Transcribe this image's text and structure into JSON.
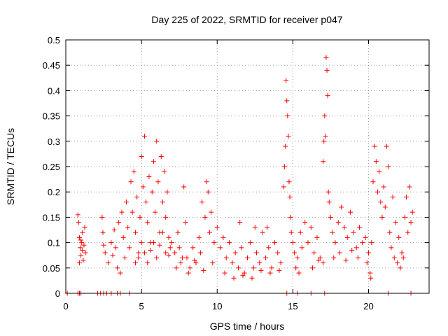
{
  "chart_data": {
    "type": "scatter",
    "title": "Day 225 of 2022, SRMTID for receiver p047",
    "xlabel": "GPS time / hours",
    "ylabel": "SRMTID / TECUs",
    "xlim": [
      0,
      24
    ],
    "ylim": [
      0,
      0.5
    ],
    "xticks": [
      0,
      5,
      10,
      15,
      20
    ],
    "xtick_labels": [
      "0",
      "5",
      "10",
      "15",
      "20"
    ],
    "yticks": [
      0,
      0.05,
      0.1,
      0.15,
      0.2,
      0.25,
      0.3,
      0.35,
      0.4,
      0.45,
      0.5
    ],
    "ytick_labels": [
      "0",
      "0.05",
      "0.1",
      "0.15",
      "0.2",
      "0.25",
      "0.3",
      "0.35",
      "0.4",
      "0.45",
      "0.5"
    ],
    "grid": true,
    "marker": "+",
    "color": "#ff0000",
    "series": [
      {
        "name": "p047",
        "points": [
          [
            0.1,
            0
          ],
          [
            0.8,
            0
          ],
          [
            0.9,
            0
          ],
          [
            1.0,
            0
          ],
          [
            2.1,
            0
          ],
          [
            2.3,
            0
          ],
          [
            2.5,
            0
          ],
          [
            2.7,
            0
          ],
          [
            3.0,
            0
          ],
          [
            3.4,
            0
          ],
          [
            3.6,
            0
          ],
          [
            4.2,
            0
          ],
          [
            14.6,
            0
          ],
          [
            15.3,
            0
          ],
          [
            16.2,
            0
          ],
          [
            17.1,
            0
          ],
          [
            21.3,
            0
          ],
          [
            22.8,
            0
          ],
          [
            0.8,
            0.155
          ],
          [
            0.85,
            0.14
          ],
          [
            0.9,
            0.11
          ],
          [
            0.95,
            0.09
          ],
          [
            1.0,
            0.075
          ],
          [
            1.05,
            0.1
          ],
          [
            1.1,
            0.12
          ],
          [
            1.15,
            0.065
          ],
          [
            1.2,
            0.095
          ],
          [
            1.25,
            0.13
          ],
          [
            1.3,
            0.08
          ],
          [
            0.9,
            0.06
          ],
          [
            1.0,
            0.105
          ],
          [
            1.1,
            0.085
          ],
          [
            2.4,
            0.15
          ],
          [
            2.45,
            0.12
          ],
          [
            2.5,
            0.095
          ],
          [
            2.6,
            0.08
          ],
          [
            2.8,
            0.06
          ],
          [
            3.0,
            0.1
          ],
          [
            3.1,
            0.075
          ],
          [
            3.2,
            0.125
          ],
          [
            3.3,
            0.09
          ],
          [
            3.4,
            0.05
          ],
          [
            3.5,
            0.14
          ],
          [
            3.6,
            0.04
          ],
          [
            3.7,
            0.16
          ],
          [
            3.8,
            0.11
          ],
          [
            3.9,
            0.07
          ],
          [
            4.0,
            0.18
          ],
          [
            4.1,
            0.13
          ],
          [
            4.2,
            0.09
          ],
          [
            4.3,
            0.22
          ],
          [
            4.4,
            0.16
          ],
          [
            4.5,
            0.24
          ],
          [
            4.6,
            0.12
          ],
          [
            4.7,
            0.19
          ],
          [
            4.8,
            0.08
          ],
          [
            4.9,
            0.15
          ],
          [
            5.0,
            0.27
          ],
          [
            5.1,
            0.21
          ],
          [
            5.2,
            0.31
          ],
          [
            5.3,
            0.18
          ],
          [
            5.4,
            0.14
          ],
          [
            5.5,
            0.23
          ],
          [
            5.6,
            0.1
          ],
          [
            5.7,
            0.2
          ],
          [
            5.8,
            0.26
          ],
          [
            5.9,
            0.16
          ],
          [
            6.0,
            0.3
          ],
          [
            6.1,
            0.22
          ],
          [
            6.2,
            0.12
          ],
          [
            6.3,
            0.27
          ],
          [
            6.4,
            0.18
          ],
          [
            6.5,
            0.24
          ],
          [
            6.6,
            0.15
          ],
          [
            6.7,
            0.2
          ],
          [
            6.8,
            0.11
          ],
          [
            6.9,
            0.09
          ],
          [
            4.6,
            0.06
          ],
          [
            4.8,
            0.07
          ],
          [
            5.0,
            0.1
          ],
          [
            5.2,
            0.08
          ],
          [
            5.4,
            0.06
          ],
          [
            5.6,
            0.085
          ],
          [
            5.8,
            0.1
          ],
          [
            6.0,
            0.07
          ],
          [
            6.2,
            0.095
          ],
          [
            6.4,
            0.12
          ],
          [
            6.6,
            0.08
          ],
          [
            6.8,
            0.075
          ],
          [
            7.0,
            0.1
          ],
          [
            7.2,
            0.08
          ],
          [
            7.4,
            0.12
          ],
          [
            7.5,
            0.09
          ],
          [
            7.6,
            0.06
          ],
          [
            7.8,
            0.21
          ],
          [
            7.9,
            0.14
          ],
          [
            8.0,
            0.07
          ],
          [
            8.2,
            0.05
          ],
          [
            8.4,
            0.09
          ],
          [
            8.6,
            0.06
          ],
          [
            8.8,
            0.11
          ],
          [
            9.0,
            0.18
          ],
          [
            9.2,
            0.15
          ],
          [
            9.3,
            0.22
          ],
          [
            9.4,
            0.2
          ],
          [
            9.5,
            0.12
          ],
          [
            9.6,
            0.16
          ],
          [
            9.8,
            0.1
          ],
          [
            7.3,
            0.05
          ],
          [
            7.7,
            0.07
          ],
          [
            8.1,
            0.04
          ],
          [
            8.5,
            0.065
          ],
          [
            8.9,
            0.08
          ],
          [
            9.1,
            0.045
          ],
          [
            9.7,
            0.06
          ],
          [
            10.0,
            0.13
          ],
          [
            10.2,
            0.09
          ],
          [
            10.4,
            0.11
          ],
          [
            10.6,
            0.07
          ],
          [
            10.8,
            0.1
          ],
          [
            11.0,
            0.06
          ],
          [
            11.2,
            0.08
          ],
          [
            11.4,
            0.05
          ],
          [
            11.6,
            0.09
          ],
          [
            11.8,
            0.04
          ],
          [
            12.0,
            0.07
          ],
          [
            12.2,
            0.1
          ],
          [
            12.4,
            0.05
          ],
          [
            12.6,
            0.08
          ],
          [
            12.8,
            0.06
          ],
          [
            13.0,
            0.12
          ],
          [
            13.2,
            0.07
          ],
          [
            13.4,
            0.09
          ],
          [
            13.6,
            0.05
          ],
          [
            13.8,
            0.1
          ],
          [
            14.0,
            0.08
          ],
          [
            14.2,
            0.06
          ],
          [
            10.5,
            0.04
          ],
          [
            11.1,
            0.03
          ],
          [
            11.7,
            0.035
          ],
          [
            12.3,
            0.03
          ],
          [
            12.9,
            0.045
          ],
          [
            13.5,
            0.04
          ],
          [
            14.1,
            0.045
          ],
          [
            11.5,
            0.14
          ],
          [
            12.5,
            0.13
          ],
          [
            13.3,
            0.13
          ],
          [
            14.4,
            0.21
          ],
          [
            14.45,
            0.25
          ],
          [
            14.5,
            0.29
          ],
          [
            14.55,
            0.42
          ],
          [
            14.6,
            0.38
          ],
          [
            14.65,
            0.35
          ],
          [
            14.7,
            0.31
          ],
          [
            14.75,
            0.22
          ],
          [
            14.8,
            0.19
          ],
          [
            14.85,
            0.15
          ],
          [
            14.9,
            0.12
          ],
          [
            15.0,
            0.1
          ],
          [
            15.1,
            0.08
          ],
          [
            15.2,
            0.05
          ],
          [
            15.3,
            0.07
          ],
          [
            15.4,
            0.04
          ],
          [
            15.5,
            0.12
          ],
          [
            15.6,
            0.09
          ],
          [
            15.8,
            0.14
          ],
          [
            16.0,
            0.1
          ],
          [
            16.2,
            0.13
          ],
          [
            16.4,
            0.08
          ],
          [
            16.6,
            0.11
          ],
          [
            16.8,
            0.07
          ],
          [
            17.0,
            0.06
          ],
          [
            16.3,
            0.05
          ],
          [
            16.7,
            0.065
          ],
          [
            17.0,
            0.26
          ],
          [
            17.05,
            0.3
          ],
          [
            17.1,
            0.35
          ],
          [
            17.15,
            0.31
          ],
          [
            17.2,
            0.465
          ],
          [
            17.25,
            0.44
          ],
          [
            17.3,
            0.39
          ],
          [
            17.35,
            0.2
          ],
          [
            17.4,
            0.18
          ],
          [
            17.5,
            0.15
          ],
          [
            17.6,
            0.12
          ],
          [
            17.8,
            0.1
          ],
          [
            18.0,
            0.14
          ],
          [
            18.2,
            0.17
          ],
          [
            18.4,
            0.13
          ],
          [
            18.6,
            0.11
          ],
          [
            18.8,
            0.16
          ],
          [
            19.0,
            0.12
          ],
          [
            19.2,
            0.09
          ],
          [
            19.4,
            0.13
          ],
          [
            19.6,
            0.1
          ],
          [
            19.8,
            0.11
          ],
          [
            20.0,
            0.08
          ],
          [
            17.7,
            0.07
          ],
          [
            18.1,
            0.08
          ],
          [
            18.5,
            0.065
          ],
          [
            18.9,
            0.085
          ],
          [
            19.3,
            0.07
          ],
          [
            19.9,
            0.06
          ],
          [
            20.1,
            0.04
          ],
          [
            20.15,
            0.03
          ],
          [
            20.2,
            0.1
          ],
          [
            20.3,
            0.22
          ],
          [
            20.4,
            0.29
          ],
          [
            20.5,
            0.26
          ],
          [
            20.6,
            0.2
          ],
          [
            20.7,
            0.24
          ],
          [
            20.8,
            0.18
          ],
          [
            20.9,
            0.15
          ],
          [
            21.0,
            0.21
          ],
          [
            21.1,
            0.17
          ],
          [
            21.2,
            0.29
          ],
          [
            21.3,
            0.25
          ],
          [
            21.4,
            0.12
          ],
          [
            21.5,
            0.09
          ],
          [
            21.6,
            0.19
          ],
          [
            21.8,
            0.14
          ],
          [
            22.0,
            0.11
          ],
          [
            22.2,
            0.08
          ],
          [
            22.4,
            0.15
          ],
          [
            22.5,
            0.19
          ],
          [
            22.6,
            0.12
          ],
          [
            22.7,
            0.21
          ],
          [
            22.8,
            0.14
          ],
          [
            21.7,
            0.07
          ],
          [
            21.9,
            0.06
          ],
          [
            22.1,
            0.05
          ],
          [
            22.3,
            0.07
          ],
          [
            22.9,
            0.16
          ]
        ]
      }
    ]
  }
}
